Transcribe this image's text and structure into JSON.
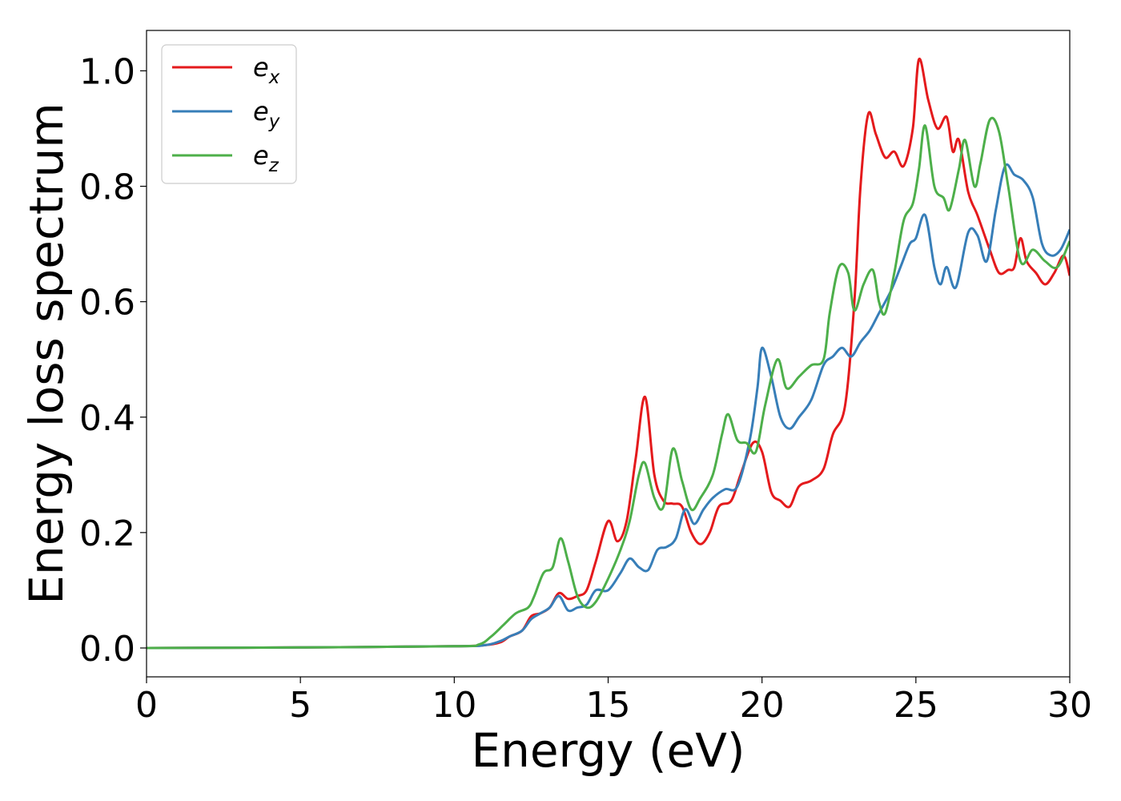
{
  "chart_data": {
    "type": "line",
    "title": "",
    "xlabel": "Energy (eV)",
    "ylabel": "Energy loss spectrum",
    "xlim": [
      0,
      30
    ],
    "ylim": [
      -0.05,
      1.07
    ],
    "xticks": [
      0,
      5,
      10,
      15,
      20,
      25,
      30
    ],
    "xtick_labels": [
      "0",
      "5",
      "10",
      "15",
      "20",
      "25",
      "30"
    ],
    "yticks": [
      0.0,
      0.2,
      0.4,
      0.6,
      0.8,
      1.0
    ],
    "ytick_labels": [
      "0.0",
      "0.2",
      "0.4",
      "0.6",
      "0.8",
      "1.0"
    ],
    "grid": false,
    "legend": {
      "position": "top-left"
    },
    "series": [
      {
        "name": "e_x",
        "label_base": "e",
        "label_sub": "x",
        "color": "#e41a1c",
        "points": [
          [
            0,
            0
          ],
          [
            5,
            0.001
          ],
          [
            10,
            0.003
          ],
          [
            11,
            0.005
          ],
          [
            11.5,
            0.01
          ],
          [
            11.8,
            0.02
          ],
          [
            12.2,
            0.03
          ],
          [
            12.5,
            0.055
          ],
          [
            12.8,
            0.06
          ],
          [
            13.1,
            0.07
          ],
          [
            13.4,
            0.095
          ],
          [
            13.7,
            0.085
          ],
          [
            14.0,
            0.09
          ],
          [
            14.3,
            0.1
          ],
          [
            14.6,
            0.15
          ],
          [
            15.0,
            0.22
          ],
          [
            15.3,
            0.185
          ],
          [
            15.6,
            0.22
          ],
          [
            15.9,
            0.33
          ],
          [
            16.2,
            0.435
          ],
          [
            16.5,
            0.3
          ],
          [
            16.8,
            0.255
          ],
          [
            17.1,
            0.25
          ],
          [
            17.4,
            0.245
          ],
          [
            17.7,
            0.2
          ],
          [
            18.0,
            0.18
          ],
          [
            18.3,
            0.2
          ],
          [
            18.6,
            0.245
          ],
          [
            19.0,
            0.255
          ],
          [
            19.3,
            0.3
          ],
          [
            19.7,
            0.355
          ],
          [
            20.0,
            0.34
          ],
          [
            20.3,
            0.27
          ],
          [
            20.6,
            0.255
          ],
          [
            20.9,
            0.245
          ],
          [
            21.2,
            0.28
          ],
          [
            21.6,
            0.29
          ],
          [
            22.0,
            0.31
          ],
          [
            22.3,
            0.37
          ],
          [
            22.7,
            0.42
          ],
          [
            23.0,
            0.6
          ],
          [
            23.2,
            0.8
          ],
          [
            23.45,
            0.925
          ],
          [
            23.7,
            0.89
          ],
          [
            24.0,
            0.85
          ],
          [
            24.3,
            0.86
          ],
          [
            24.6,
            0.835
          ],
          [
            24.9,
            0.9
          ],
          [
            25.1,
            1.02
          ],
          [
            25.4,
            0.95
          ],
          [
            25.7,
            0.9
          ],
          [
            26.0,
            0.92
          ],
          [
            26.2,
            0.86
          ],
          [
            26.4,
            0.88
          ],
          [
            26.7,
            0.79
          ],
          [
            27.0,
            0.75
          ],
          [
            27.4,
            0.69
          ],
          [
            27.7,
            0.65
          ],
          [
            28.0,
            0.655
          ],
          [
            28.2,
            0.66
          ],
          [
            28.4,
            0.71
          ],
          [
            28.6,
            0.67
          ],
          [
            28.9,
            0.65
          ],
          [
            29.2,
            0.63
          ],
          [
            29.5,
            0.65
          ],
          [
            29.8,
            0.68
          ],
          [
            30.0,
            0.645
          ]
        ]
      },
      {
        "name": "e_y",
        "label_base": "e",
        "label_sub": "y",
        "color": "#377eb8",
        "points": [
          [
            0,
            0
          ],
          [
            5,
            0.001
          ],
          [
            10,
            0.003
          ],
          [
            11,
            0.005
          ],
          [
            11.5,
            0.012
          ],
          [
            11.8,
            0.02
          ],
          [
            12.2,
            0.03
          ],
          [
            12.5,
            0.05
          ],
          [
            12.8,
            0.06
          ],
          [
            13.1,
            0.07
          ],
          [
            13.4,
            0.09
          ],
          [
            13.7,
            0.065
          ],
          [
            14.0,
            0.07
          ],
          [
            14.3,
            0.075
          ],
          [
            14.6,
            0.1
          ],
          [
            15.0,
            0.1
          ],
          [
            15.4,
            0.13
          ],
          [
            15.7,
            0.155
          ],
          [
            16.0,
            0.14
          ],
          [
            16.3,
            0.135
          ],
          [
            16.6,
            0.17
          ],
          [
            16.9,
            0.175
          ],
          [
            17.2,
            0.19
          ],
          [
            17.5,
            0.24
          ],
          [
            17.8,
            0.215
          ],
          [
            18.1,
            0.24
          ],
          [
            18.4,
            0.26
          ],
          [
            18.8,
            0.275
          ],
          [
            19.2,
            0.28
          ],
          [
            19.6,
            0.36
          ],
          [
            19.85,
            0.45
          ],
          [
            20.0,
            0.52
          ],
          [
            20.3,
            0.47
          ],
          [
            20.6,
            0.4
          ],
          [
            20.9,
            0.38
          ],
          [
            21.2,
            0.4
          ],
          [
            21.6,
            0.43
          ],
          [
            22.0,
            0.49
          ],
          [
            22.3,
            0.505
          ],
          [
            22.6,
            0.52
          ],
          [
            22.9,
            0.505
          ],
          [
            23.2,
            0.53
          ],
          [
            23.5,
            0.55
          ],
          [
            23.8,
            0.58
          ],
          [
            24.2,
            0.62
          ],
          [
            24.5,
            0.66
          ],
          [
            24.8,
            0.7
          ],
          [
            25.0,
            0.71
          ],
          [
            25.3,
            0.75
          ],
          [
            25.6,
            0.66
          ],
          [
            25.8,
            0.63
          ],
          [
            26.0,
            0.66
          ],
          [
            26.3,
            0.625
          ],
          [
            26.7,
            0.72
          ],
          [
            27.0,
            0.715
          ],
          [
            27.3,
            0.67
          ],
          [
            27.6,
            0.76
          ],
          [
            27.9,
            0.835
          ],
          [
            28.2,
            0.82
          ],
          [
            28.5,
            0.81
          ],
          [
            28.8,
            0.78
          ],
          [
            29.1,
            0.7
          ],
          [
            29.4,
            0.68
          ],
          [
            29.7,
            0.69
          ],
          [
            30.0,
            0.725
          ]
        ]
      },
      {
        "name": "e_z",
        "label_base": "e",
        "label_sub": "z",
        "color": "#4daf4a",
        "points": [
          [
            0,
            0
          ],
          [
            5,
            0.001
          ],
          [
            10,
            0.003
          ],
          [
            10.8,
            0.006
          ],
          [
            11.2,
            0.02
          ],
          [
            11.6,
            0.04
          ],
          [
            12.0,
            0.06
          ],
          [
            12.4,
            0.07
          ],
          [
            12.6,
            0.09
          ],
          [
            12.9,
            0.13
          ],
          [
            13.2,
            0.14
          ],
          [
            13.45,
            0.19
          ],
          [
            13.7,
            0.15
          ],
          [
            14.0,
            0.09
          ],
          [
            14.3,
            0.07
          ],
          [
            14.6,
            0.08
          ],
          [
            15.0,
            0.12
          ],
          [
            15.4,
            0.17
          ],
          [
            15.7,
            0.22
          ],
          [
            16.0,
            0.3
          ],
          [
            16.2,
            0.32
          ],
          [
            16.5,
            0.26
          ],
          [
            16.8,
            0.245
          ],
          [
            17.1,
            0.345
          ],
          [
            17.4,
            0.29
          ],
          [
            17.7,
            0.24
          ],
          [
            18.0,
            0.26
          ],
          [
            18.4,
            0.3
          ],
          [
            18.7,
            0.37
          ],
          [
            18.9,
            0.405
          ],
          [
            19.2,
            0.36
          ],
          [
            19.5,
            0.355
          ],
          [
            19.8,
            0.34
          ],
          [
            20.1,
            0.42
          ],
          [
            20.5,
            0.5
          ],
          [
            20.8,
            0.45
          ],
          [
            21.2,
            0.47
          ],
          [
            21.6,
            0.49
          ],
          [
            22.0,
            0.5
          ],
          [
            22.2,
            0.58
          ],
          [
            22.5,
            0.66
          ],
          [
            22.8,
            0.65
          ],
          [
            23.0,
            0.585
          ],
          [
            23.3,
            0.63
          ],
          [
            23.6,
            0.655
          ],
          [
            23.8,
            0.6
          ],
          [
            24.0,
            0.58
          ],
          [
            24.3,
            0.65
          ],
          [
            24.6,
            0.74
          ],
          [
            24.9,
            0.77
          ],
          [
            25.1,
            0.83
          ],
          [
            25.3,
            0.905
          ],
          [
            25.6,
            0.8
          ],
          [
            25.9,
            0.78
          ],
          [
            26.1,
            0.76
          ],
          [
            26.4,
            0.83
          ],
          [
            26.6,
            0.88
          ],
          [
            26.9,
            0.8
          ],
          [
            27.1,
            0.84
          ],
          [
            27.4,
            0.915
          ],
          [
            27.7,
            0.895
          ],
          [
            28.0,
            0.8
          ],
          [
            28.4,
            0.67
          ],
          [
            28.8,
            0.69
          ],
          [
            29.2,
            0.67
          ],
          [
            29.6,
            0.66
          ],
          [
            30.0,
            0.705
          ]
        ]
      }
    ]
  }
}
